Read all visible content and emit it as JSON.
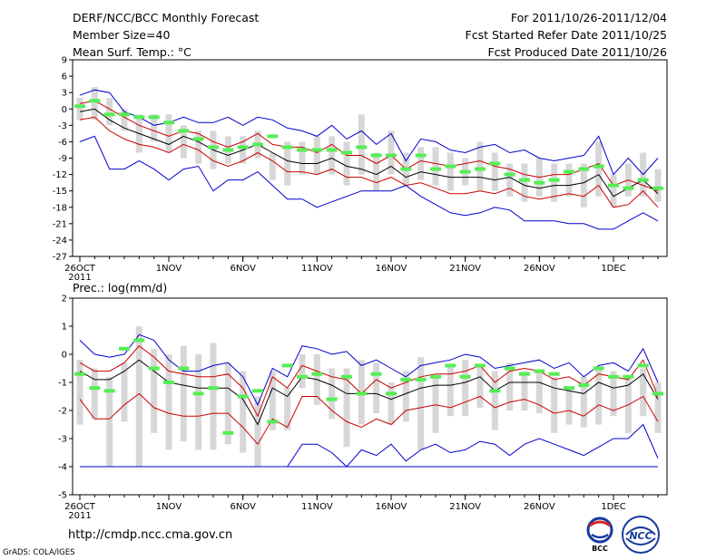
{
  "header": {
    "title": "DERF/NCC/BCC Monthly Forecast",
    "member": "Member Size=40",
    "variable": "Mean Surf. Temp.: °C",
    "period": "For 2011/10/26-2011/12/04",
    "started": "Fcst Started Refer Date 2011/10/25",
    "produced": "Fcst Produced Date 2011/10/26"
  },
  "footer": {
    "url": "http://cmdp.ncc.cma.gov.cn",
    "grads": "GrADS: COLA/IGES",
    "logo1_text": "BCC",
    "logo2_text": "NCC"
  },
  "colors": {
    "range": "#0000cc",
    "sd": "#cc0000",
    "mean": "#000000",
    "box": "#d7d7d7",
    "clim": "#55ee55"
  },
  "chart_data": [
    {
      "type": "line",
      "title": "Mean Surf. Temp.: °C",
      "xlabel": "",
      "ylabel": "",
      "x_ticks": [
        "26OCT",
        "1NOV",
        "6NOV",
        "11NOV",
        "16NOV",
        "21NOV",
        "26NOV",
        "1DEC"
      ],
      "x_tick_days": [
        1,
        7,
        12,
        17,
        22,
        27,
        32,
        37
      ],
      "x_sub_label": "2011",
      "ylim": [
        -27,
        9
      ],
      "yticks": [
        9,
        6,
        3,
        0,
        -3,
        -6,
        -9,
        -12,
        -15,
        -18,
        -21,
        -24,
        -27
      ],
      "days": [
        1,
        2,
        3,
        4,
        5,
        6,
        7,
        8,
        9,
        10,
        11,
        12,
        13,
        14,
        15,
        16,
        17,
        18,
        19,
        20,
        21,
        22,
        23,
        24,
        25,
        26,
        27,
        28,
        29,
        30,
        31,
        32,
        33,
        34,
        35,
        36,
        37,
        38,
        39,
        40
      ],
      "series": [
        {
          "name": "max",
          "values": [
            2.5,
            3.5,
            3,
            -0.5,
            -1.5,
            -3,
            -2.5,
            -1.5,
            -2.5,
            -2.5,
            -1.5,
            -3,
            -1.5,
            -2,
            -3.5,
            -4,
            -5,
            -3,
            -5.5,
            -4,
            -6.5,
            -4.5,
            -9.5,
            -5.5,
            -6,
            -7.5,
            -8,
            -7,
            -6.5,
            -8,
            -7.5,
            -9,
            -9.5,
            -9,
            -8.5,
            -5,
            -12,
            -9,
            -12,
            -9
          ]
        },
        {
          "name": "plus_sd",
          "values": [
            1,
            1.5,
            0,
            -1.5,
            -3,
            -4,
            -5,
            -4,
            -4.5,
            -6,
            -7,
            -6,
            -4.5,
            -6.5,
            -7,
            -7,
            -8,
            -6.5,
            -8.5,
            -8.5,
            -10,
            -8.5,
            -11,
            -9.5,
            -10,
            -10.5,
            -10,
            -9.5,
            -10.5,
            -11,
            -12,
            -12.5,
            -12,
            -12,
            -11,
            -10,
            -14,
            -13,
            -14,
            -15
          ]
        },
        {
          "name": "mean",
          "values": [
            -0.5,
            0,
            -2,
            -3.5,
            -4.5,
            -5.5,
            -6.5,
            -5,
            -6,
            -7.5,
            -8.5,
            -7.5,
            -6.5,
            -8,
            -9.5,
            -10,
            -10,
            -9,
            -10.5,
            -11,
            -12,
            -10.5,
            -12.5,
            -11.5,
            -12,
            -12.5,
            -12.5,
            -12.5,
            -13,
            -12.5,
            -14,
            -14.5,
            -14,
            -14,
            -13.5,
            -12,
            -16,
            -14.5,
            -13,
            -15.5
          ]
        },
        {
          "name": "minus_sd",
          "values": [
            -2,
            -1.5,
            -4,
            -5.5,
            -6.5,
            -7,
            -8,
            -6.5,
            -7.5,
            -9.5,
            -10.5,
            -9.5,
            -8,
            -9.5,
            -11.5,
            -11.5,
            -12,
            -11,
            -12.5,
            -12.5,
            -13.5,
            -12.5,
            -14,
            -13.5,
            -14.5,
            -15.5,
            -15.5,
            -15,
            -15.5,
            -14.5,
            -16,
            -16.5,
            -16,
            -15.5,
            -16,
            -14,
            -18,
            -17.5,
            -15,
            -18
          ]
        },
        {
          "name": "min",
          "values": [
            -6,
            -5,
            -11,
            -11,
            -9.5,
            -11,
            -13,
            -11,
            -10.5,
            -15,
            -13,
            -13,
            -11.5,
            -14,
            -16.5,
            -16.5,
            -18,
            -17,
            -16,
            -15,
            -15,
            -15,
            -14,
            -16,
            -17.5,
            -19,
            -19.5,
            -19,
            -18,
            -18.5,
            -20.5,
            -20.5,
            -20.5,
            -21,
            -21,
            -22,
            -22,
            -20.5,
            -19,
            -20.5
          ]
        }
      ],
      "boxes": [
        [
          -2,
          2
        ],
        [
          -2,
          4
        ],
        [
          -3,
          2
        ],
        [
          -4,
          0
        ],
        [
          -8,
          -1
        ],
        [
          -6,
          -1
        ],
        [
          -8,
          -1
        ],
        [
          -9,
          -3
        ],
        [
          -10,
          -4
        ],
        [
          -11,
          -4
        ],
        [
          -10,
          -5
        ],
        [
          -10,
          -5
        ],
        [
          -9,
          -4
        ],
        [
          -13,
          -8
        ],
        [
          -14,
          -6
        ],
        [
          -12,
          -6
        ],
        [
          -12,
          -5
        ],
        [
          -12,
          -5
        ],
        [
          -14,
          -6
        ],
        [
          -12,
          -1
        ],
        [
          -15,
          -8
        ],
        [
          -12,
          -4
        ],
        [
          -14,
          -8
        ],
        [
          -13,
          -7
        ],
        [
          -14,
          -7
        ],
        [
          -15,
          -8
        ],
        [
          -14,
          -9
        ],
        [
          -15,
          -6
        ],
        [
          -15,
          -8
        ],
        [
          -16,
          -10
        ],
        [
          -17,
          -10
        ],
        [
          -16,
          -9
        ],
        [
          -17,
          -10
        ],
        [
          -16,
          -10
        ],
        [
          -18,
          -10
        ],
        [
          -16,
          -6
        ],
        [
          -18,
          -12
        ],
        [
          -16,
          -10
        ],
        [
          -16,
          -8
        ],
        [
          -17,
          -11
        ]
      ],
      "clim": [
        0.5,
        1.5,
        -1,
        -1,
        -1.5,
        -1.5,
        -2.5,
        -4,
        -5.5,
        -7,
        -7.5,
        -7,
        -6.5,
        -5,
        -7,
        -7.5,
        -7.5,
        -7.5,
        -8,
        -7,
        -8.5,
        -8.5,
        -11,
        -8.5,
        -11,
        -10.5,
        -11.5,
        -11,
        -10,
        -12,
        -13,
        -13.5,
        -13,
        -11.5,
        -11,
        -10.5,
        -14,
        -14.5,
        -13,
        -14.5
      ]
    },
    {
      "type": "line",
      "title": "Prec.: log(mm/d)",
      "xlabel": "",
      "ylabel": "",
      "x_ticks": [
        "26OCT",
        "1NOV",
        "6NOV",
        "11NOV",
        "16NOV",
        "21NOV",
        "26NOV",
        "1DEC"
      ],
      "x_tick_days": [
        1,
        7,
        12,
        17,
        22,
        27,
        32,
        37
      ],
      "x_sub_label": "2011",
      "ylim": [
        -5,
        2
      ],
      "yticks": [
        2,
        1,
        0,
        -1,
        -2,
        -3,
        -4,
        -5
      ],
      "days": [
        1,
        2,
        3,
        4,
        5,
        6,
        7,
        8,
        9,
        10,
        11,
        12,
        13,
        14,
        15,
        16,
        17,
        18,
        19,
        20,
        21,
        22,
        23,
        24,
        25,
        26,
        27,
        28,
        29,
        30,
        31,
        32,
        33,
        34,
        35,
        36,
        37,
        38,
        39,
        40
      ],
      "series": [
        {
          "name": "max",
          "values": [
            0.5,
            0,
            -0.1,
            0,
            0.7,
            0.5,
            -0.2,
            -0.6,
            -0.6,
            -0.4,
            -0.3,
            -0.8,
            -1.8,
            -0.5,
            -0.8,
            0.3,
            0.2,
            0,
            0.1,
            -0.4,
            -0.2,
            -0.5,
            -0.8,
            -0.4,
            -0.3,
            -0.2,
            0,
            -0.1,
            -0.5,
            -0.4,
            -0.3,
            -0.2,
            -0.5,
            -0.3,
            -0.8,
            -0.4,
            -0.3,
            -0.6,
            0.2,
            -1
          ]
        },
        {
          "name": "plus_sd",
          "values": [
            -0.3,
            -0.6,
            -0.6,
            -0.3,
            0.3,
            -0.1,
            -0.6,
            -0.7,
            -0.8,
            -0.8,
            -0.7,
            -1.2,
            -2.2,
            -0.8,
            -1.2,
            -0.4,
            -0.6,
            -0.8,
            -0.9,
            -1.4,
            -0.9,
            -1.2,
            -1,
            -0.8,
            -0.7,
            -0.7,
            -0.6,
            -0.4,
            -1,
            -0.6,
            -0.5,
            -0.6,
            -0.9,
            -0.8,
            -1.1,
            -0.7,
            -0.8,
            -0.9,
            -0.2,
            -1.5
          ]
        },
        {
          "name": "mean",
          "values": [
            -0.6,
            -0.9,
            -0.9,
            -0.6,
            -0.2,
            -0.6,
            -1,
            -1.1,
            -1.2,
            -1.2,
            -1.2,
            -1.6,
            -2.5,
            -1.2,
            -1.5,
            -0.8,
            -0.9,
            -1.1,
            -1.4,
            -1.4,
            -1.4,
            -1.6,
            -1.4,
            -1.2,
            -1.1,
            -1.1,
            -1,
            -0.8,
            -1.3,
            -1,
            -1,
            -1,
            -1.2,
            -1.3,
            -1.4,
            -1,
            -1.2,
            -1.1,
            -0.7,
            -1.6
          ]
        },
        {
          "name": "minus_sd",
          "values": [
            -1.6,
            -2.3,
            -2.3,
            -1.8,
            -1.4,
            -1.9,
            -2.1,
            -2.2,
            -2.2,
            -2.1,
            -2.1,
            -2.6,
            -3.2,
            -2.3,
            -2.6,
            -1.5,
            -1.5,
            -2,
            -2.4,
            -2.6,
            -2.3,
            -2.5,
            -2,
            -1.9,
            -1.8,
            -1.9,
            -1.7,
            -1.5,
            -1.9,
            -1.7,
            -1.6,
            -1.8,
            -2.1,
            -2,
            -2.2,
            -1.8,
            -2,
            -1.8,
            -1.5,
            -2.4
          ]
        },
        {
          "name": "min",
          "values": [
            -4,
            -4,
            -4,
            -4,
            -4,
            -4,
            -4,
            -4,
            -4,
            -4,
            -4,
            -4,
            -4,
            -4,
            -4,
            -3.2,
            -3.2,
            -3.5,
            -4,
            -3.4,
            -3.6,
            -3.2,
            -3.8,
            -3.4,
            -3.2,
            -3.5,
            -3.4,
            -3.1,
            -3.2,
            -3.6,
            -3.2,
            -3,
            -3.2,
            -3.4,
            -3.6,
            -3.3,
            -3,
            -3,
            -2.5,
            -3.7
          ]
        },
        {
          "name": "min_flat",
          "values": [
            -4,
            -4,
            -4,
            -4,
            -4,
            -4,
            -4,
            -4,
            -4,
            -4,
            -4,
            -4,
            -4,
            -4,
            -4,
            -4,
            -4,
            -4,
            -4,
            -4,
            -4,
            -4,
            -4,
            -4,
            -4,
            -4,
            -4,
            -4,
            -4,
            -4,
            -4,
            -4,
            -4,
            -4,
            -4,
            -4,
            -4,
            -4,
            -4,
            -4
          ]
        }
      ],
      "boxes": [
        [
          -2.5,
          -0.2
        ],
        [
          -2.3,
          -0.5
        ],
        [
          -4,
          -0.8
        ],
        [
          -2.4,
          -0.3
        ],
        [
          -4,
          1
        ],
        [
          -2.8,
          0.2
        ],
        [
          -3.4,
          0
        ],
        [
          -3.1,
          0.3
        ],
        [
          -3.4,
          0
        ],
        [
          -3.4,
          0.4
        ],
        [
          -3.2,
          -0.3
        ],
        [
          -3.5,
          -0.6
        ],
        [
          -4,
          -1.5
        ],
        [
          -2.7,
          -0.6
        ],
        [
          -2.7,
          -1.2
        ],
        [
          -1.2,
          0
        ],
        [
          -1.8,
          0
        ],
        [
          -2.3,
          -0.5
        ],
        [
          -3.3,
          -0.5
        ],
        [
          -2.5,
          -0.2
        ],
        [
          -2.1,
          -0.3
        ],
        [
          -2.5,
          -1
        ],
        [
          -2.4,
          -0.6
        ],
        [
          -3.4,
          -0.1
        ],
        [
          -2.8,
          -0.8
        ],
        [
          -2.2,
          -0.4
        ],
        [
          -2.2,
          -0.2
        ],
        [
          -1.9,
          -0.4
        ],
        [
          -2.7,
          -0.6
        ],
        [
          -2,
          -0.3
        ],
        [
          -2,
          -0.6
        ],
        [
          -2.1,
          -0.6
        ],
        [
          -2.8,
          -0.8
        ],
        [
          -2.5,
          -1.2
        ],
        [
          -2.6,
          -0.8
        ],
        [
          -2.5,
          -0.5
        ],
        [
          -2.2,
          -0.6
        ],
        [
          -2.8,
          -0.8
        ],
        [
          -2.2,
          -0.5
        ],
        [
          -2.8,
          -1
        ]
      ],
      "clim": [
        -0.7,
        -1.2,
        -1.3,
        0.2,
        0.5,
        -0.5,
        -1,
        -0.5,
        -1.4,
        -1.2,
        -2.8,
        -1.5,
        -1.3,
        -2.4,
        -0.4,
        -0.8,
        -0.7,
        -1.6,
        -0.8,
        -1.4,
        -0.7,
        -1.4,
        -0.9,
        -0.9,
        -0.8,
        -0.4,
        -0.8,
        -0.4,
        -1.3,
        -0.5,
        -0.7,
        -0.6,
        -0.7,
        -1.2,
        -1.1,
        -0.5,
        -0.8,
        -0.8,
        -0.4,
        -1.4
      ]
    }
  ]
}
